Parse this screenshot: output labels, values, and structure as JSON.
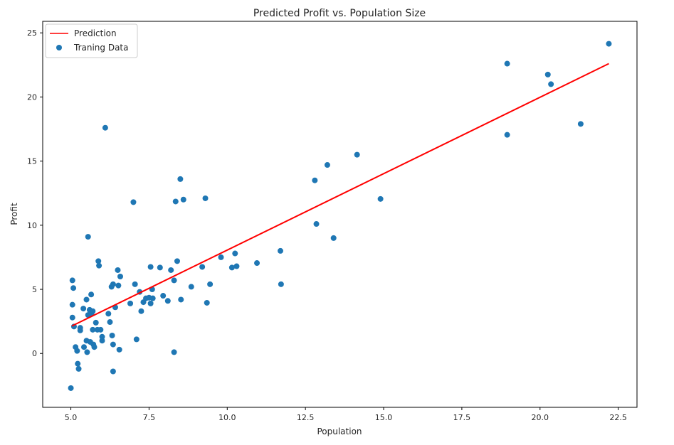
{
  "chart_data": {
    "type": "scatter",
    "title": "Predicted Profit vs. Population Size",
    "xlabel": "Population",
    "ylabel": "Profit",
    "xlim": [
      4.1,
      23.1
    ],
    "ylim": [
      -4.2,
      25.9
    ],
    "xticks": [
      5.0,
      7.5,
      10.0,
      12.5,
      15.0,
      17.5,
      20.0,
      22.5
    ],
    "xtick_labels": [
      "5.0",
      "7.5",
      "10.0",
      "12.5",
      "15.0",
      "17.5",
      "20.0",
      "22.5"
    ],
    "yticks": [
      0,
      5,
      10,
      15,
      20,
      25
    ],
    "ytick_labels": [
      "0",
      "5",
      "10",
      "15",
      "20",
      "25"
    ],
    "grid": false,
    "legend_position": "top-left",
    "series": [
      {
        "name": "Prediction",
        "kind": "line",
        "color": "#ff0000",
        "x": [
          5.03,
          22.2
        ],
        "y": [
          2.14,
          22.6
        ]
      },
      {
        "name": "Traning Data",
        "kind": "scatter",
        "color": "#1f77b4",
        "points": [
          [
            5.0,
            -2.7
          ],
          [
            5.05,
            5.7
          ],
          [
            5.08,
            5.1
          ],
          [
            5.05,
            3.8
          ],
          [
            5.05,
            2.8
          ],
          [
            5.1,
            2.1
          ],
          [
            5.15,
            0.5
          ],
          [
            5.2,
            0.2
          ],
          [
            5.22,
            -0.8
          ],
          [
            5.25,
            -1.2
          ],
          [
            5.3,
            2.0
          ],
          [
            5.3,
            1.8
          ],
          [
            5.4,
            3.5
          ],
          [
            5.42,
            0.5
          ],
          [
            5.5,
            4.2
          ],
          [
            5.5,
            1.0
          ],
          [
            5.52,
            0.1
          ],
          [
            5.55,
            9.1
          ],
          [
            5.55,
            3.0
          ],
          [
            5.6,
            3.4
          ],
          [
            5.62,
            0.9
          ],
          [
            5.65,
            4.6
          ],
          [
            5.66,
            3.1
          ],
          [
            5.7,
            3.3
          ],
          [
            5.7,
            1.85
          ],
          [
            5.72,
            0.7
          ],
          [
            5.75,
            0.5
          ],
          [
            5.8,
            2.4
          ],
          [
            5.85,
            1.85
          ],
          [
            5.88,
            7.2
          ],
          [
            5.9,
            6.85
          ],
          [
            5.95,
            1.85
          ],
          [
            6.0,
            1.3
          ],
          [
            6.0,
            1.0
          ],
          [
            6.1,
            17.6
          ],
          [
            6.2,
            3.1
          ],
          [
            6.25,
            2.45
          ],
          [
            6.3,
            5.2
          ],
          [
            6.32,
            1.4
          ],
          [
            6.35,
            5.4
          ],
          [
            6.35,
            0.7
          ],
          [
            6.35,
            -1.4
          ],
          [
            6.42,
            3.6
          ],
          [
            6.5,
            6.5
          ],
          [
            6.52,
            5.3
          ],
          [
            6.55,
            0.3
          ],
          [
            6.58,
            6.0
          ],
          [
            6.9,
            3.9
          ],
          [
            7.0,
            11.8
          ],
          [
            7.05,
            5.4
          ],
          [
            7.1,
            1.1
          ],
          [
            7.2,
            4.8
          ],
          [
            7.25,
            3.3
          ],
          [
            7.32,
            4.0
          ],
          [
            7.4,
            4.3
          ],
          [
            7.5,
            4.35
          ],
          [
            7.55,
            6.75
          ],
          [
            7.55,
            3.9
          ],
          [
            7.6,
            5.0
          ],
          [
            7.62,
            4.3
          ],
          [
            7.85,
            6.7
          ],
          [
            7.95,
            4.5
          ],
          [
            8.1,
            4.1
          ],
          [
            8.2,
            6.5
          ],
          [
            8.3,
            5.7
          ],
          [
            8.3,
            0.1
          ],
          [
            8.35,
            11.85
          ],
          [
            8.4,
            7.2
          ],
          [
            8.5,
            13.6
          ],
          [
            8.52,
            4.2
          ],
          [
            8.6,
            12.0
          ],
          [
            8.85,
            5.2
          ],
          [
            9.2,
            6.75
          ],
          [
            9.3,
            12.1
          ],
          [
            9.35,
            3.95
          ],
          [
            9.45,
            5.4
          ],
          [
            9.8,
            7.5
          ],
          [
            10.15,
            6.7
          ],
          [
            10.25,
            7.8
          ],
          [
            10.3,
            6.8
          ],
          [
            10.95,
            7.05
          ],
          [
            11.7,
            8.0
          ],
          [
            11.72,
            5.4
          ],
          [
            12.8,
            13.5
          ],
          [
            12.85,
            10.1
          ],
          [
            13.2,
            14.7
          ],
          [
            13.4,
            9.0
          ],
          [
            14.15,
            15.5
          ],
          [
            14.9,
            12.05
          ],
          [
            18.95,
            22.6
          ],
          [
            18.95,
            17.05
          ],
          [
            20.25,
            21.75
          ],
          [
            20.35,
            21.0
          ],
          [
            21.3,
            17.9
          ],
          [
            22.2,
            24.15
          ]
        ]
      }
    ]
  }
}
